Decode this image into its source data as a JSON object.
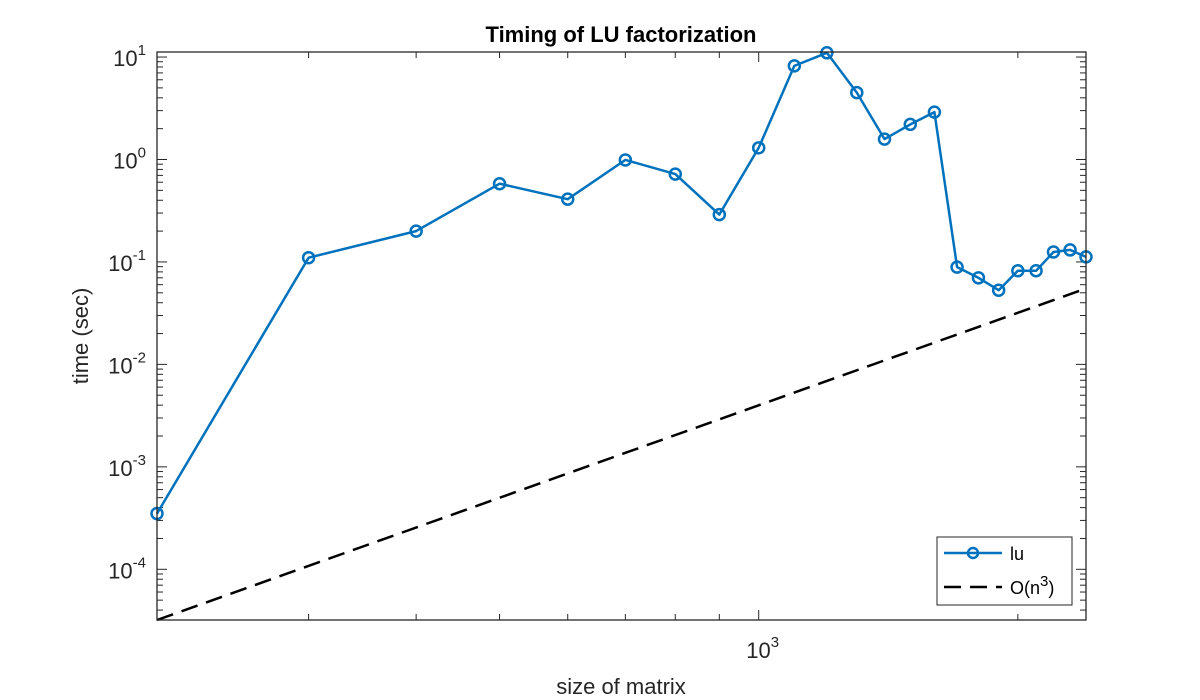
{
  "chart_data": {
    "type": "line",
    "title": "Timing of LU factorization",
    "xlabel": "size of matrix",
    "ylabel": "time (sec)",
    "xscale": "log",
    "yscale": "log",
    "xlim": [
      200,
      2400
    ],
    "ylim": [
      3.2e-05,
      11.2
    ],
    "grid": false,
    "legend_position": "lower right",
    "x_tick_labels": [
      {
        "value": 1000,
        "base": "10",
        "exp": "3"
      }
    ],
    "y_tick_labels": [
      {
        "value": 10,
        "base": "10",
        "exp": "1"
      },
      {
        "value": 1,
        "base": "10",
        "exp": "0"
      },
      {
        "value": 0.1,
        "base": "10",
        "exp": "-1"
      },
      {
        "value": 0.01,
        "base": "10",
        "exp": "-2"
      },
      {
        "value": 0.001,
        "base": "10",
        "exp": "-3"
      },
      {
        "value": 0.0001,
        "base": "10",
        "exp": "-4"
      }
    ],
    "series": [
      {
        "name": "lu",
        "color": "#0072BD",
        "style": "solid",
        "marker": "circle",
        "x": [
          200,
          300,
          400,
          500,
          600,
          700,
          800,
          900,
          1000,
          1100,
          1200,
          1300,
          1400,
          1500,
          1600,
          1700,
          1800,
          1900,
          2000,
          2100,
          2200,
          2300,
          2400
        ],
        "values": [
          0.00035,
          0.11,
          0.2,
          0.58,
          0.41,
          0.99,
          0.72,
          0.29,
          1.3,
          8.2,
          11.0,
          4.5,
          1.58,
          2.2,
          2.9,
          0.089,
          0.07,
          0.053,
          0.082,
          0.082,
          0.125,
          0.131,
          0.112
        ]
      },
      {
        "name": "O(n^3)",
        "label_base": "O(n",
        "label_exp": "3",
        "label_tail": ")",
        "color": "#000000",
        "style": "dashed",
        "marker": "none",
        "x": [
          200,
          2400
        ],
        "values": [
          3.2e-05,
          0.055
        ]
      }
    ]
  }
}
